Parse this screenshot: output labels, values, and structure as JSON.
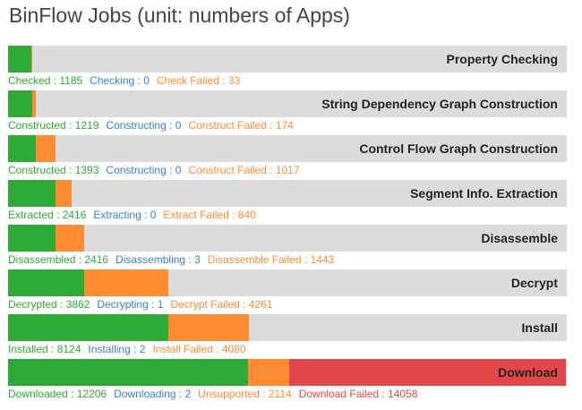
{
  "title": "BinFlow Jobs (unit: numbers of Apps)",
  "colors": {
    "done": "#2eaa36",
    "running": "#3a7fd6",
    "failed": "#ff8c33",
    "download_failed": "#e2474a",
    "track": "#dcdcdc"
  },
  "jobs": [
    {
      "label": "Property Checking",
      "stats": [
        {
          "text": "Checked : 1185",
          "color": "#2eaa36"
        },
        {
          "text": "Checking : 0",
          "color": "#3a7fd6"
        },
        {
          "text": "Check Failed : 33",
          "color": "#ff8c33"
        }
      ]
    },
    {
      "label": "String Dependency Graph Construction",
      "stats": [
        {
          "text": "Constructed : 1219",
          "color": "#2eaa36"
        },
        {
          "text": "Constructing : 0",
          "color": "#3a7fd6"
        },
        {
          "text": "Construct Failed : 174",
          "color": "#ff8c33"
        }
      ]
    },
    {
      "label": "Control Flow Graph Construction",
      "stats": [
        {
          "text": "Constructed : 1393",
          "color": "#2eaa36"
        },
        {
          "text": "Constructing : 0",
          "color": "#3a7fd6"
        },
        {
          "text": "Construct Failed : 1017",
          "color": "#ff8c33"
        }
      ]
    },
    {
      "label": "Segment Info. Extraction",
      "stats": [
        {
          "text": "Extracted : 2416",
          "color": "#2eaa36"
        },
        {
          "text": "Extracting : 0",
          "color": "#3a7fd6"
        },
        {
          "text": "Extract Failed : 840",
          "color": "#ff8c33"
        }
      ]
    },
    {
      "label": "Disassemble",
      "stats": [
        {
          "text": "Disassembled : 2416",
          "color": "#2eaa36"
        },
        {
          "text": "Disassembling : 3",
          "color": "#3a7fd6"
        },
        {
          "text": "Disassemble Failed : 1443",
          "color": "#ff8c33"
        }
      ]
    },
    {
      "label": "Decrypt",
      "stats": [
        {
          "text": "Decrypted : 3862",
          "color": "#2eaa36"
        },
        {
          "text": "Decrypting : 1",
          "color": "#3a7fd6"
        },
        {
          "text": "Decrypt Failed : 4261",
          "color": "#ff8c33"
        }
      ]
    },
    {
      "label": "Install",
      "stats": [
        {
          "text": "Installed : 8124",
          "color": "#2eaa36"
        },
        {
          "text": "Installing : 2",
          "color": "#3a7fd6"
        },
        {
          "text": "Install Failed : 4080",
          "color": "#ff8c33"
        }
      ]
    },
    {
      "label": "Download",
      "stats": [
        {
          "text": "Downloaded : 12206",
          "color": "#2eaa36"
        },
        {
          "text": "Downloading : 2",
          "color": "#3a7fd6"
        },
        {
          "text": "Unsupported : 2114",
          "color": "#ff8c33"
        },
        {
          "text": "Download Failed : 14058",
          "color": "#e2474a"
        }
      ]
    }
  ],
  "chart_data": {
    "type": "bar",
    "orientation": "horizontal",
    "stacked": true,
    "categories": [
      "Property Checking",
      "String Dependency Graph Construction",
      "Control Flow Graph Construction",
      "Segment Info. Extraction",
      "Disassemble",
      "Decrypt",
      "Install",
      "Download"
    ],
    "xlim": [
      0,
      28380
    ],
    "segments": [
      [
        {
          "value": 1185,
          "color": "#2eaa36"
        },
        {
          "value": 0,
          "color": "#3a7fd6"
        },
        {
          "value": 33,
          "color": "#ff8c33"
        }
      ],
      [
        {
          "value": 1219,
          "color": "#2eaa36"
        },
        {
          "value": 0,
          "color": "#3a7fd6"
        },
        {
          "value": 174,
          "color": "#ff8c33"
        }
      ],
      [
        {
          "value": 1393,
          "color": "#2eaa36"
        },
        {
          "value": 0,
          "color": "#3a7fd6"
        },
        {
          "value": 1017,
          "color": "#ff8c33"
        }
      ],
      [
        {
          "value": 2416,
          "color": "#2eaa36"
        },
        {
          "value": 0,
          "color": "#3a7fd6"
        },
        {
          "value": 840,
          "color": "#ff8c33"
        }
      ],
      [
        {
          "value": 2416,
          "color": "#2eaa36"
        },
        {
          "value": 3,
          "color": "#3a7fd6"
        },
        {
          "value": 1443,
          "color": "#ff8c33"
        }
      ],
      [
        {
          "value": 3862,
          "color": "#2eaa36"
        },
        {
          "value": 1,
          "color": "#3a7fd6"
        },
        {
          "value": 4261,
          "color": "#ff8c33"
        }
      ],
      [
        {
          "value": 8124,
          "color": "#2eaa36"
        },
        {
          "value": 2,
          "color": "#3a7fd6"
        },
        {
          "value": 4080,
          "color": "#ff8c33"
        }
      ],
      [
        {
          "value": 12206,
          "color": "#2eaa36"
        },
        {
          "value": 2,
          "color": "#3a7fd6"
        },
        {
          "value": 2114,
          "color": "#ff8c33"
        },
        {
          "value": 14058,
          "color": "#e2474a"
        }
      ]
    ]
  }
}
